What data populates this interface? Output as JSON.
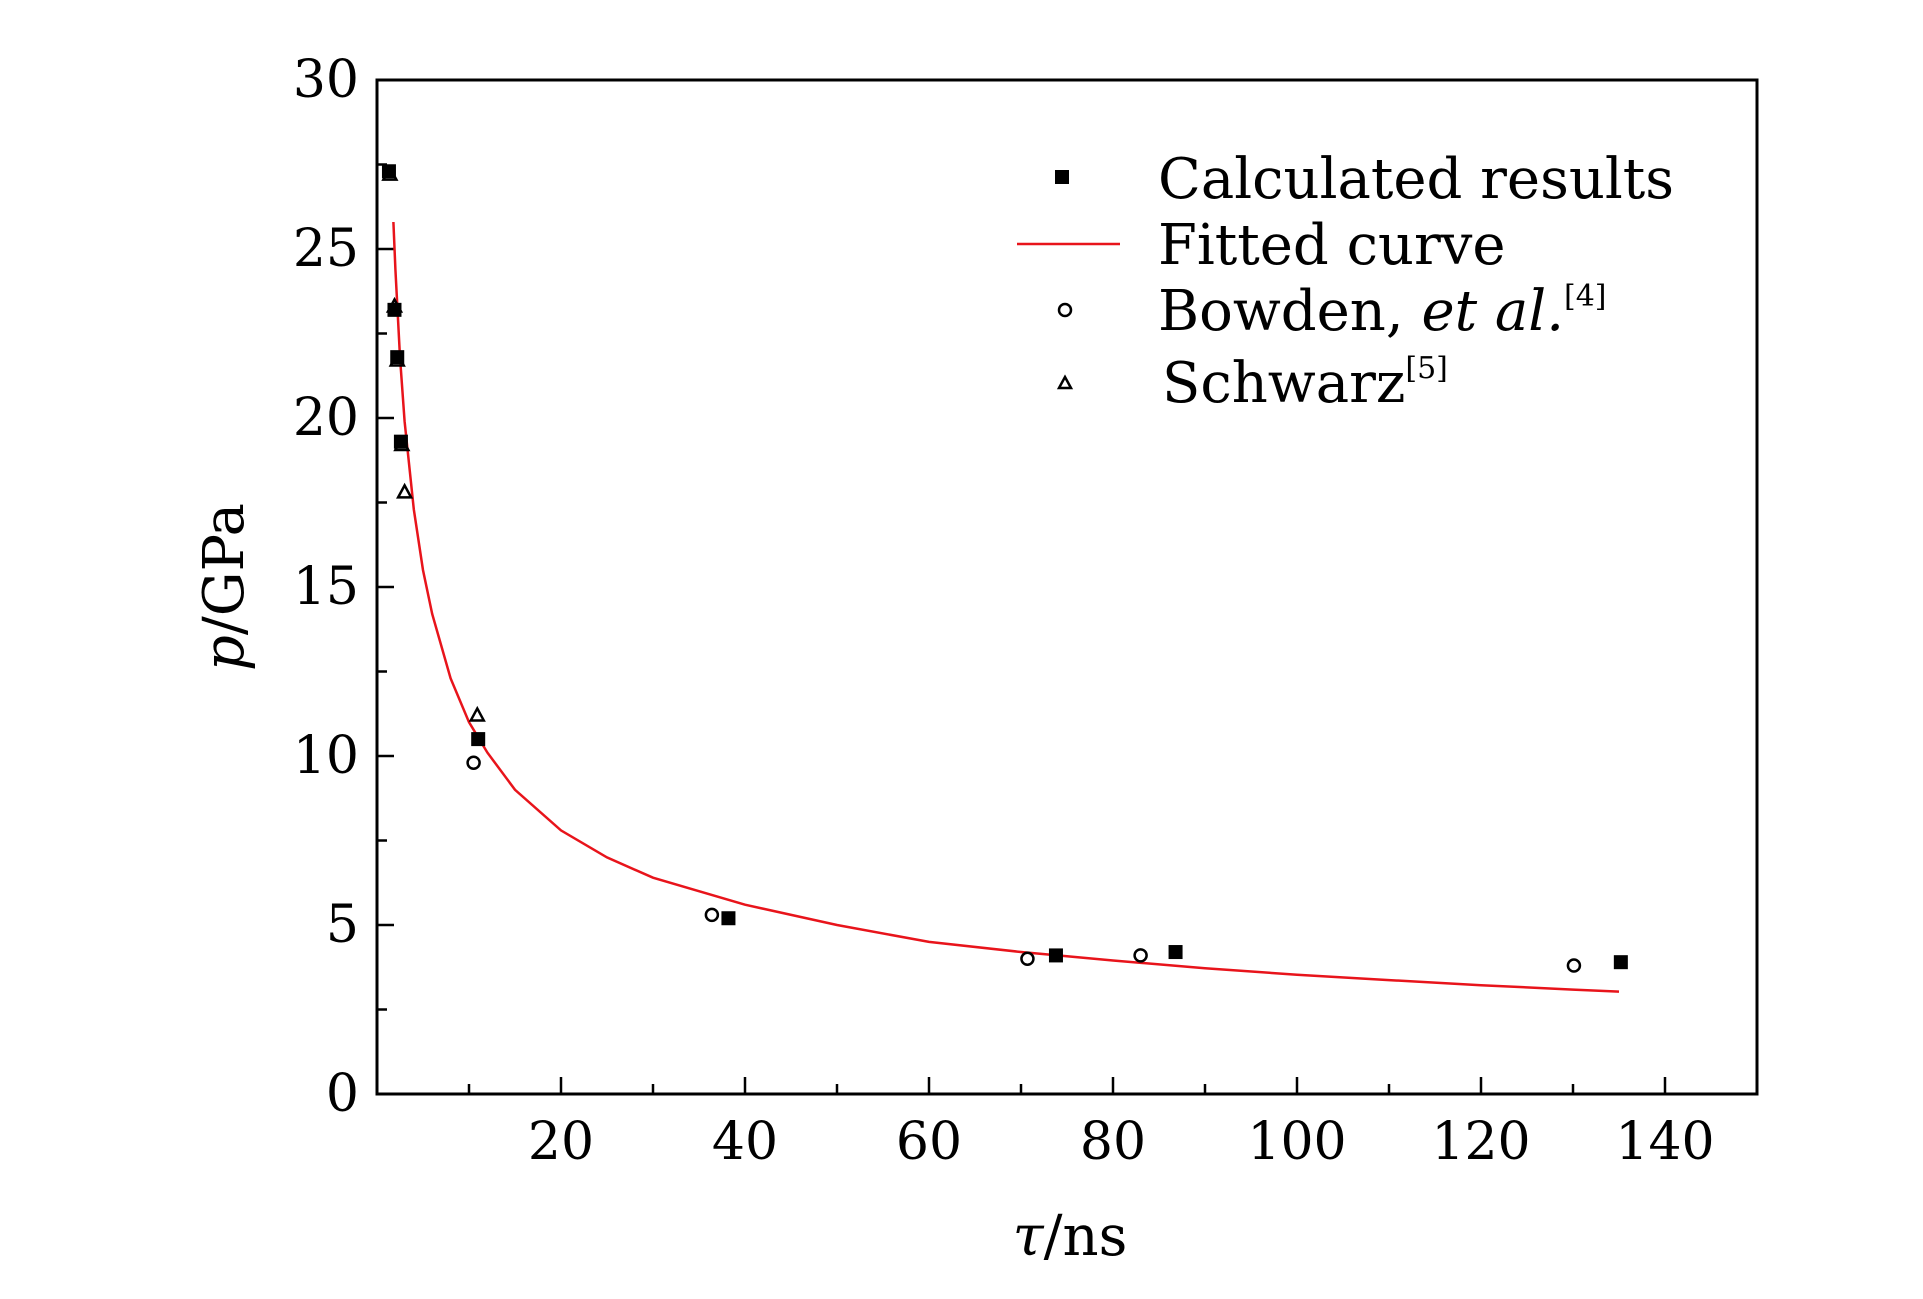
{
  "chart_data": {
    "type": "scatter",
    "title": "",
    "xlabel": {
      "symbol": "τ",
      "unit": "/ns"
    },
    "ylabel": {
      "symbol": "p",
      "unit": "/GPa"
    },
    "xlim": [
      0,
      150
    ],
    "ylim": [
      0,
      30
    ],
    "x_ticks": [
      20,
      40,
      60,
      80,
      100,
      120,
      140
    ],
    "y_ticks": [
      0,
      5,
      10,
      15,
      20,
      25,
      30
    ],
    "x_tick_labels": [
      "20",
      "40",
      "60",
      "80",
      "100",
      "120",
      "140"
    ],
    "y_tick_labels": [
      "0",
      "5",
      "10",
      "15",
      "20",
      "25",
      "30"
    ],
    "legend_position": "top-right",
    "legend": [
      {
        "key": "calculated",
        "label": "Calculated results",
        "suffix": "",
        "sup": ""
      },
      {
        "key": "fitted",
        "label": "Fitted curve",
        "suffix": "",
        "sup": ""
      },
      {
        "key": "bowden",
        "label": "Bowden, ",
        "suffix": "et al.",
        "sup": "[4]"
      },
      {
        "key": "schwarz",
        "label": "Schwarz",
        "suffix": "",
        "sup": "[5]"
      }
    ],
    "series": [
      {
        "name": "Calculated results",
        "marker": "filled-square",
        "color": "#000000",
        "points": [
          [
            1.3,
            27.3
          ],
          [
            1.9,
            23.2
          ],
          [
            2.2,
            21.8
          ],
          [
            2.6,
            19.3
          ],
          [
            11.0,
            10.5
          ],
          [
            38.2,
            5.2
          ],
          [
            73.8,
            4.1
          ],
          [
            86.8,
            4.2
          ],
          [
            135.2,
            3.9
          ]
        ]
      },
      {
        "name": "Fitted curve",
        "type": "line",
        "color": "#e8141b",
        "model": "p = 34.6 * tau^-0.496",
        "points": [
          [
            1.78,
            25.8
          ],
          [
            2,
            24.4
          ],
          [
            2.5,
            21.8
          ],
          [
            3,
            19.9
          ],
          [
            4,
            17.3
          ],
          [
            5,
            15.5
          ],
          [
            6,
            14.2
          ],
          [
            8,
            12.3
          ],
          [
            10,
            11.0
          ],
          [
            12,
            10.1
          ],
          [
            15,
            9.0
          ],
          [
            20,
            7.8
          ],
          [
            25,
            7.0
          ],
          [
            30,
            6.4
          ],
          [
            40,
            5.6
          ],
          [
            50,
            5.0
          ],
          [
            60,
            4.5
          ],
          [
            70,
            4.2
          ],
          [
            80,
            3.95
          ],
          [
            90,
            3.72
          ],
          [
            100,
            3.53
          ],
          [
            110,
            3.37
          ],
          [
            120,
            3.22
          ],
          [
            130,
            3.09
          ],
          [
            135,
            3.03
          ]
        ]
      },
      {
        "name": "Bowden, et al.[4]",
        "marker": "open-circle",
        "color": "#000000",
        "points": [
          [
            10.5,
            9.8
          ],
          [
            36.4,
            5.3
          ],
          [
            70.7,
            4.0
          ],
          [
            83.0,
            4.1
          ],
          [
            130.1,
            3.8
          ]
        ]
      },
      {
        "name": "Schwarz[5]",
        "marker": "open-triangle",
        "color": "#000000",
        "points": [
          [
            1.4,
            27.2
          ],
          [
            1.9,
            23.3
          ],
          [
            2.2,
            21.7
          ],
          [
            2.7,
            19.2
          ],
          [
            3.0,
            17.8
          ],
          [
            10.9,
            11.2
          ]
        ]
      }
    ]
  },
  "colors": {
    "axis": "#000000",
    "fit_line": "#e8141b",
    "background": "#ffffff"
  }
}
